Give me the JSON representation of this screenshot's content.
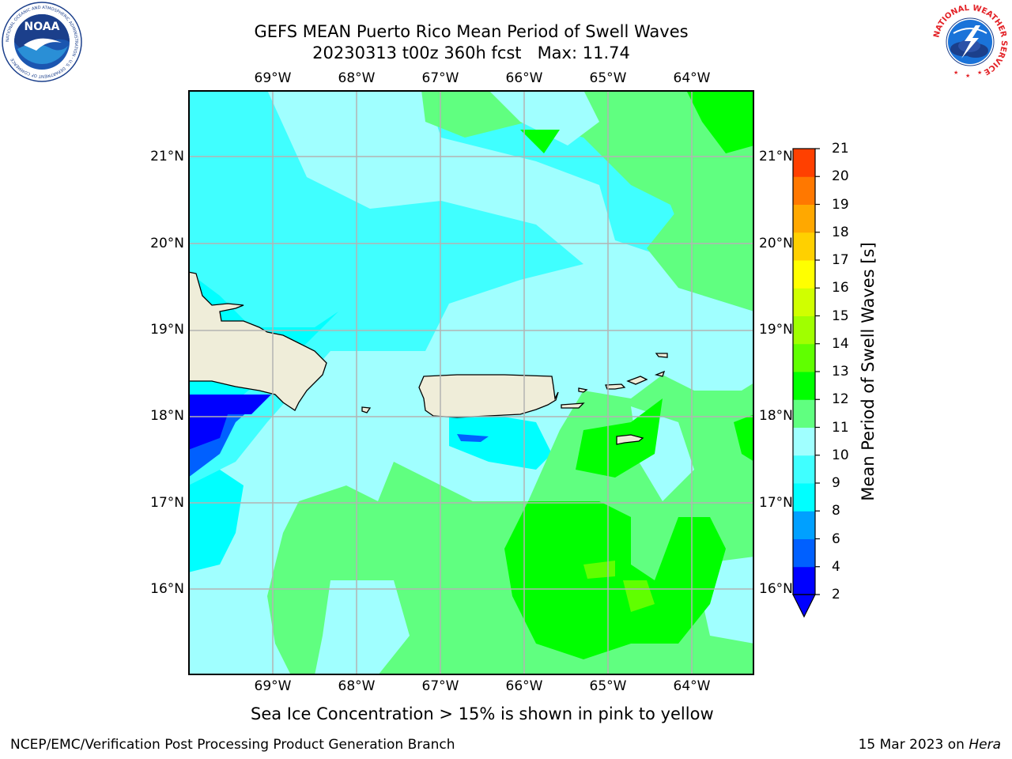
{
  "title": {
    "line1": "GEFS MEAN Puerto Rico Mean Period of Swell Waves",
    "line2": "20230313 t00z 360h fcst   Max: 11.74"
  },
  "map": {
    "lon_ticks": [
      "69°W",
      "68°W",
      "67°W",
      "66°W",
      "65°W",
      "64°W"
    ],
    "lat_ticks": [
      "21°N",
      "20°N",
      "19°N",
      "18°N",
      "17°N",
      "16°N"
    ]
  },
  "colorbar": {
    "title": "Mean Period of Swell Waves [s]",
    "levels": [
      "2",
      "4",
      "6",
      "8",
      "9",
      "10",
      "11",
      "12",
      "13",
      "14",
      "15",
      "16",
      "17",
      "18",
      "19",
      "20",
      "21"
    ],
    "colors": [
      "#0000ff",
      "#0060ff",
      "#00a0ff",
      "#00ffff",
      "#40ffff",
      "#a0ffff",
      "#60ff80",
      "#00ff00",
      "#60ff00",
      "#a0ff00",
      "#d0ff00",
      "#ffff00",
      "#ffd000",
      "#ffa800",
      "#ff7800",
      "#ff4000",
      "#ff0000"
    ],
    "extend_color": "#0000ff"
  },
  "subtitle": "Sea Ice Concentration > 15% is shown in pink to yellow",
  "footer": {
    "left": "NCEP/EMC/Verification Post Processing Product Generation Branch",
    "right_date": "15 Mar 2023 on ",
    "right_host": "Hera"
  },
  "logos": {
    "noaa_text": "NOAA",
    "noaa_ring": "NATIONAL OCEANIC AND ATMOSPHERIC ADMINISTRATION · U.S. DEPARTMENT OF COMMERCE",
    "nws_ring": "NATIONAL WEATHER SERVICE"
  },
  "colors": {
    "land": "#efedd9",
    "grid": "#b3b3b3"
  }
}
